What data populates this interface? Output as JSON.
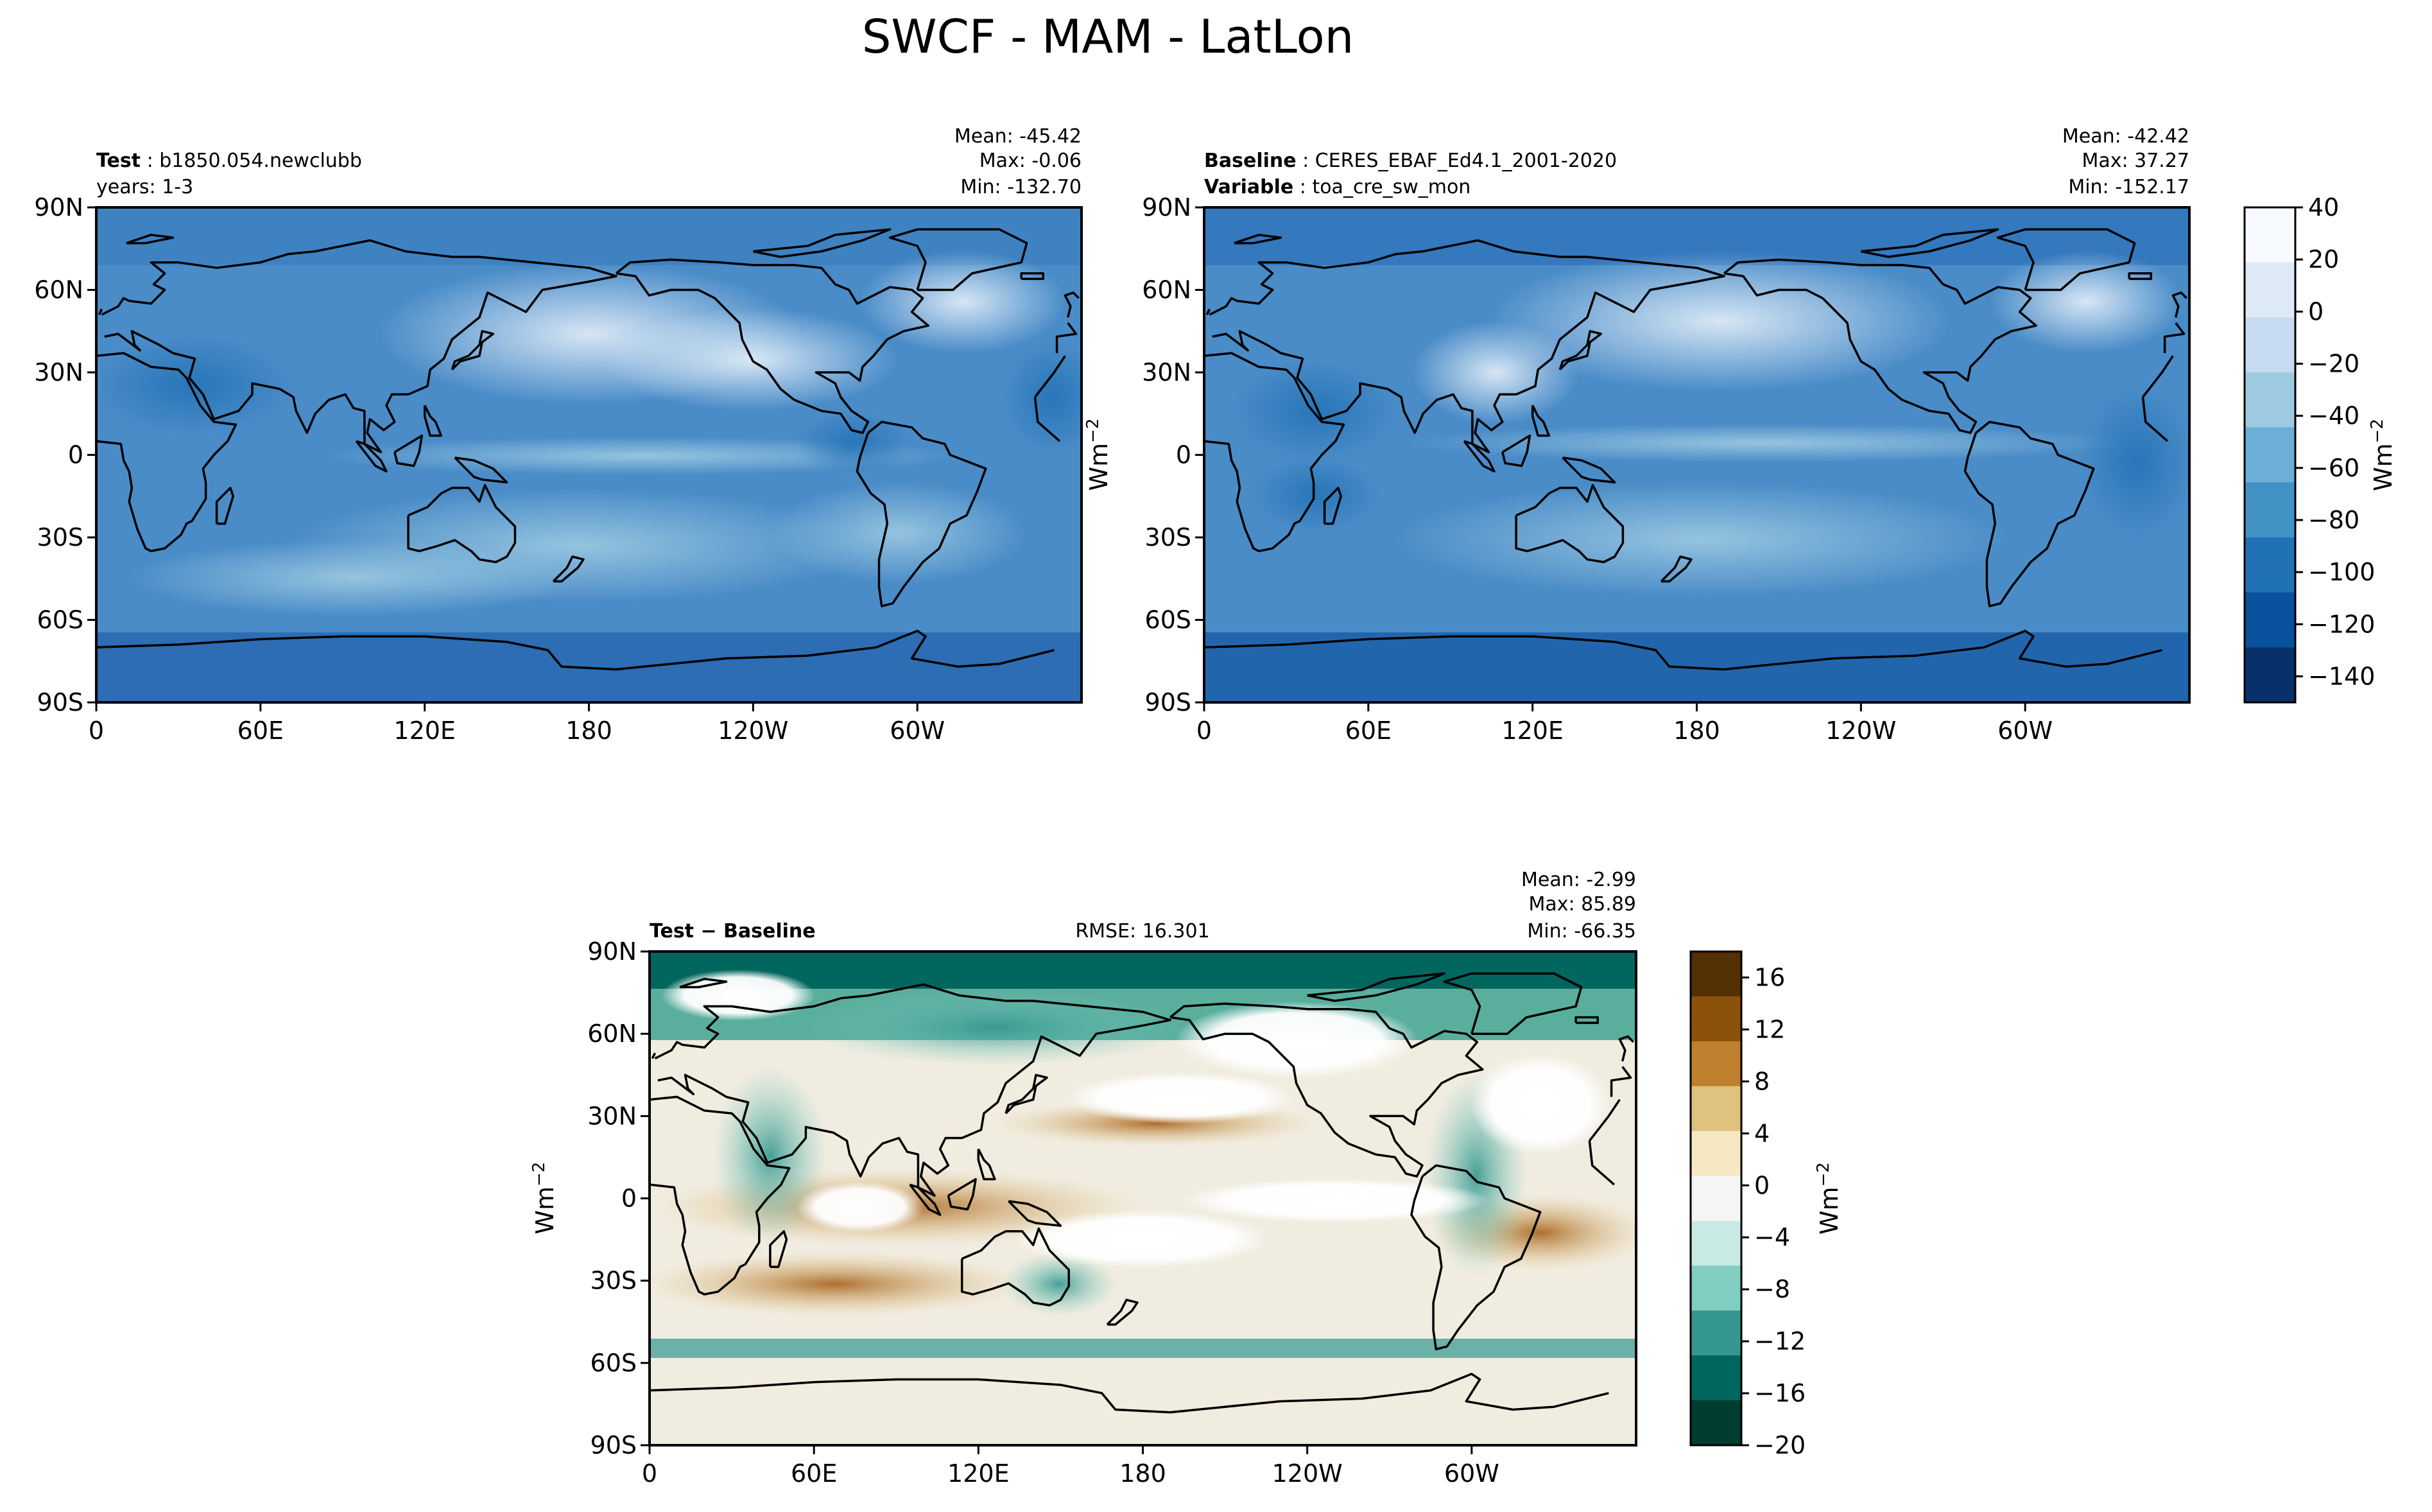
{
  "title": "SWCF - MAM - LatLon",
  "colors": {
    "blues": [
      "#f7fbff",
      "#deebf7",
      "#c6dbef",
      "#9ecae1",
      "#6baed6",
      "#4292c6",
      "#2171b5",
      "#08519c",
      "#08306b"
    ],
    "diff": [
      "#543005",
      "#8c510a",
      "#bf812d",
      "#dfc27d",
      "#f6e8c3",
      "#f5f5f5",
      "#c7eae5",
      "#80cdc1",
      "#35978f",
      "#01665e",
      "#003c30"
    ],
    "coast": "#000000",
    "frame": "#000000"
  },
  "chart_data": [
    {
      "type": "heatmap",
      "name": "test",
      "header": {
        "label_bold": "Test",
        "label_text": "b1850.054.newclubb",
        "line2": "years: 1-3"
      },
      "stats": [
        "Mean: -45.42",
        "Max: -0.06",
        "Min: -132.70"
      ],
      "mean": -45.42,
      "max": -0.06,
      "min": -132.7,
      "xticks": [
        "0",
        "60E",
        "120E",
        "180",
        "120W",
        "60W"
      ],
      "yticks": [
        "90N",
        "60N",
        "30N",
        "0",
        "30S",
        "60S",
        "90S"
      ],
      "xlim": [
        0,
        360
      ],
      "ylim": [
        -90,
        90
      ]
    },
    {
      "type": "heatmap",
      "name": "baseline",
      "header": {
        "label_bold": "Baseline",
        "label_text": "CERES_EBAF_Ed4.1_2001-2020",
        "line2_bold": "Variable",
        "line2_text": "toa_cre_sw_mon"
      },
      "stats": [
        "Mean: -42.42",
        "Max: 37.27",
        "Min: -152.17"
      ],
      "mean": -42.42,
      "max": 37.27,
      "min": -152.17,
      "xticks": [
        "0",
        "60E",
        "120E",
        "180",
        "120W",
        "60W"
      ],
      "yticks": [
        "90N",
        "60N",
        "30N",
        "0",
        "30S",
        "60S",
        "90S"
      ],
      "xlim": [
        0,
        360
      ],
      "ylim": [
        -90,
        90
      ]
    },
    {
      "type": "heatmap",
      "name": "difference",
      "header": {
        "label_bold": "Test − Baseline",
        "rmse": "RMSE: 16.301"
      },
      "stats": [
        "Mean: -2.99",
        "Max: 85.89",
        "Min: -66.35"
      ],
      "mean": -2.99,
      "max": 85.89,
      "min": -66.35,
      "rmse": 16.301,
      "xticks": [
        "0",
        "60E",
        "120E",
        "180",
        "120W",
        "60W"
      ],
      "yticks": [
        "90N",
        "60N",
        "30N",
        "0",
        "30S",
        "60S",
        "90S"
      ],
      "xlim": [
        0,
        360
      ],
      "ylim": [
        -90,
        90
      ]
    }
  ],
  "colorbars": {
    "top": {
      "label": "Wm",
      "exponent": "−2",
      "range": [
        -150,
        40
      ],
      "ticks": [
        "40",
        "20",
        "0",
        "−20",
        "−40",
        "−60",
        "−80",
        "−100",
        "−120",
        "−140"
      ],
      "tick_values": [
        40,
        20,
        0,
        -20,
        -40,
        -60,
        -80,
        -100,
        -120,
        -140
      ]
    },
    "bottom": {
      "label": "Wm",
      "exponent": "−2",
      "range": [
        -20,
        18
      ],
      "ticks": [
        "16",
        "12",
        "8",
        "4",
        "0",
        "−4",
        "−8",
        "−12",
        "−16",
        "−20"
      ],
      "tick_values": [
        16,
        12,
        8,
        4,
        0,
        -4,
        -8,
        -12,
        -16,
        -20
      ]
    }
  },
  "side_labels": {
    "top_map": "Wm",
    "bottom_map": "Wm",
    "exponent": "−2"
  }
}
